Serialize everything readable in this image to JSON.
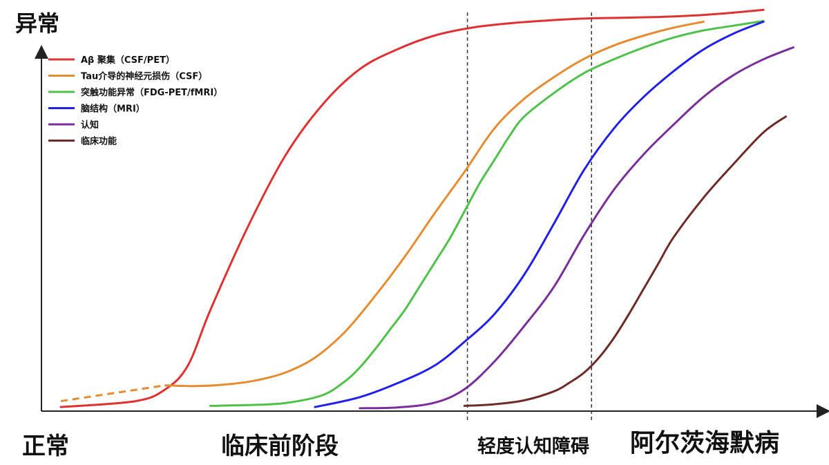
{
  "chart_data": {
    "type": "line",
    "title": "",
    "ylabel": "异常",
    "y_bottom_label": "正常",
    "stages": [
      "临床前阶段",
      "轻度认知障碍",
      "阿尔茨海默病"
    ],
    "xlim": [
      0,
      100
    ],
    "ylim": [
      0,
      100
    ],
    "stage_boundaries": [
      54.4,
      71.0
    ],
    "legend_position": "top-left",
    "series": [
      {
        "name": "Aβ 聚集（CSF/PET）",
        "color": "#e03030",
        "x": [
          0,
          10,
          14,
          17,
          20,
          25,
          30,
          35,
          40,
          45,
          50,
          55,
          60,
          65,
          70,
          75,
          80,
          85,
          90,
          94
        ],
        "y": [
          0.5,
          2,
          5,
          11,
          25,
          46,
          64,
          77,
          86,
          91,
          94.5,
          96.5,
          97.6,
          98.3,
          98.8,
          99.0,
          99.2,
          99.6,
          100.3,
          101
        ]
      },
      {
        "name": "Tau介导的神经元损伤（CSF）",
        "color": "#e88a2e",
        "x": [
          14,
          18,
          22,
          26,
          30,
          34,
          38,
          42,
          46,
          50,
          54,
          58,
          62,
          66,
          70,
          74,
          78,
          82,
          86
        ],
        "y": [
          6,
          5.8,
          6.2,
          7.2,
          9.2,
          13,
          19.5,
          28.5,
          38.5,
          49.5,
          60,
          71,
          78.5,
          84,
          88.6,
          92,
          94.5,
          96.5,
          98
        ]
      },
      {
        "name": "突触功能异常（FDG-PET/fMRI）",
        "color": "#4cc248",
        "x": [
          20,
          25,
          30,
          35,
          38,
          40,
          42,
          44,
          46,
          48,
          50,
          52,
          54,
          56,
          58,
          60,
          62,
          66,
          70,
          74,
          78,
          82,
          86,
          90,
          94
        ],
        "y": [
          0.8,
          1.0,
          1.5,
          3.5,
          7,
          10.5,
          15,
          20,
          25,
          31,
          37,
          43,
          50,
          57,
          63,
          69,
          74,
          80,
          85,
          88.5,
          91.5,
          94,
          95.8,
          97,
          98.2
        ]
      },
      {
        "name": "脑结构（MRI）",
        "color": "#2020e8",
        "x": [
          34,
          40,
          45,
          50,
          54,
          58,
          62,
          66,
          70,
          74,
          78,
          82,
          86,
          90,
          94
        ],
        "y": [
          0.5,
          3,
          6.5,
          11,
          17,
          24,
          34,
          47,
          60.5,
          71,
          79,
          85.5,
          91,
          95,
          98
        ]
      },
      {
        "name": "认知",
        "color": "#7a2c9a",
        "x": [
          40,
          45,
          50,
          54,
          58,
          62,
          66,
          70,
          74,
          78,
          82,
          86,
          90,
          94,
          98
        ],
        "y": [
          0.2,
          0.4,
          1.6,
          5,
          12,
          21,
          31,
          44,
          55.5,
          64.5,
          72,
          79,
          84.5,
          88.5,
          91.5
        ]
      },
      {
        "name": "临床功能",
        "color": "#6e2a24",
        "x": [
          54,
          58,
          62,
          66,
          68,
          70,
          72,
          74,
          76,
          78,
          80,
          82,
          86,
          90,
          94,
          97
        ],
        "y": [
          0.8,
          1.2,
          2.2,
          4.5,
          6.6,
          9.2,
          13,
          18,
          24,
          30.5,
          37,
          43.5,
          53.5,
          62,
          70,
          74
        ]
      }
    ],
    "dashed_extension": {
      "series": "Tau介导的神经元损伤（CSF）",
      "x": [
        0,
        14
      ],
      "y": [
        2,
        6
      ]
    }
  }
}
